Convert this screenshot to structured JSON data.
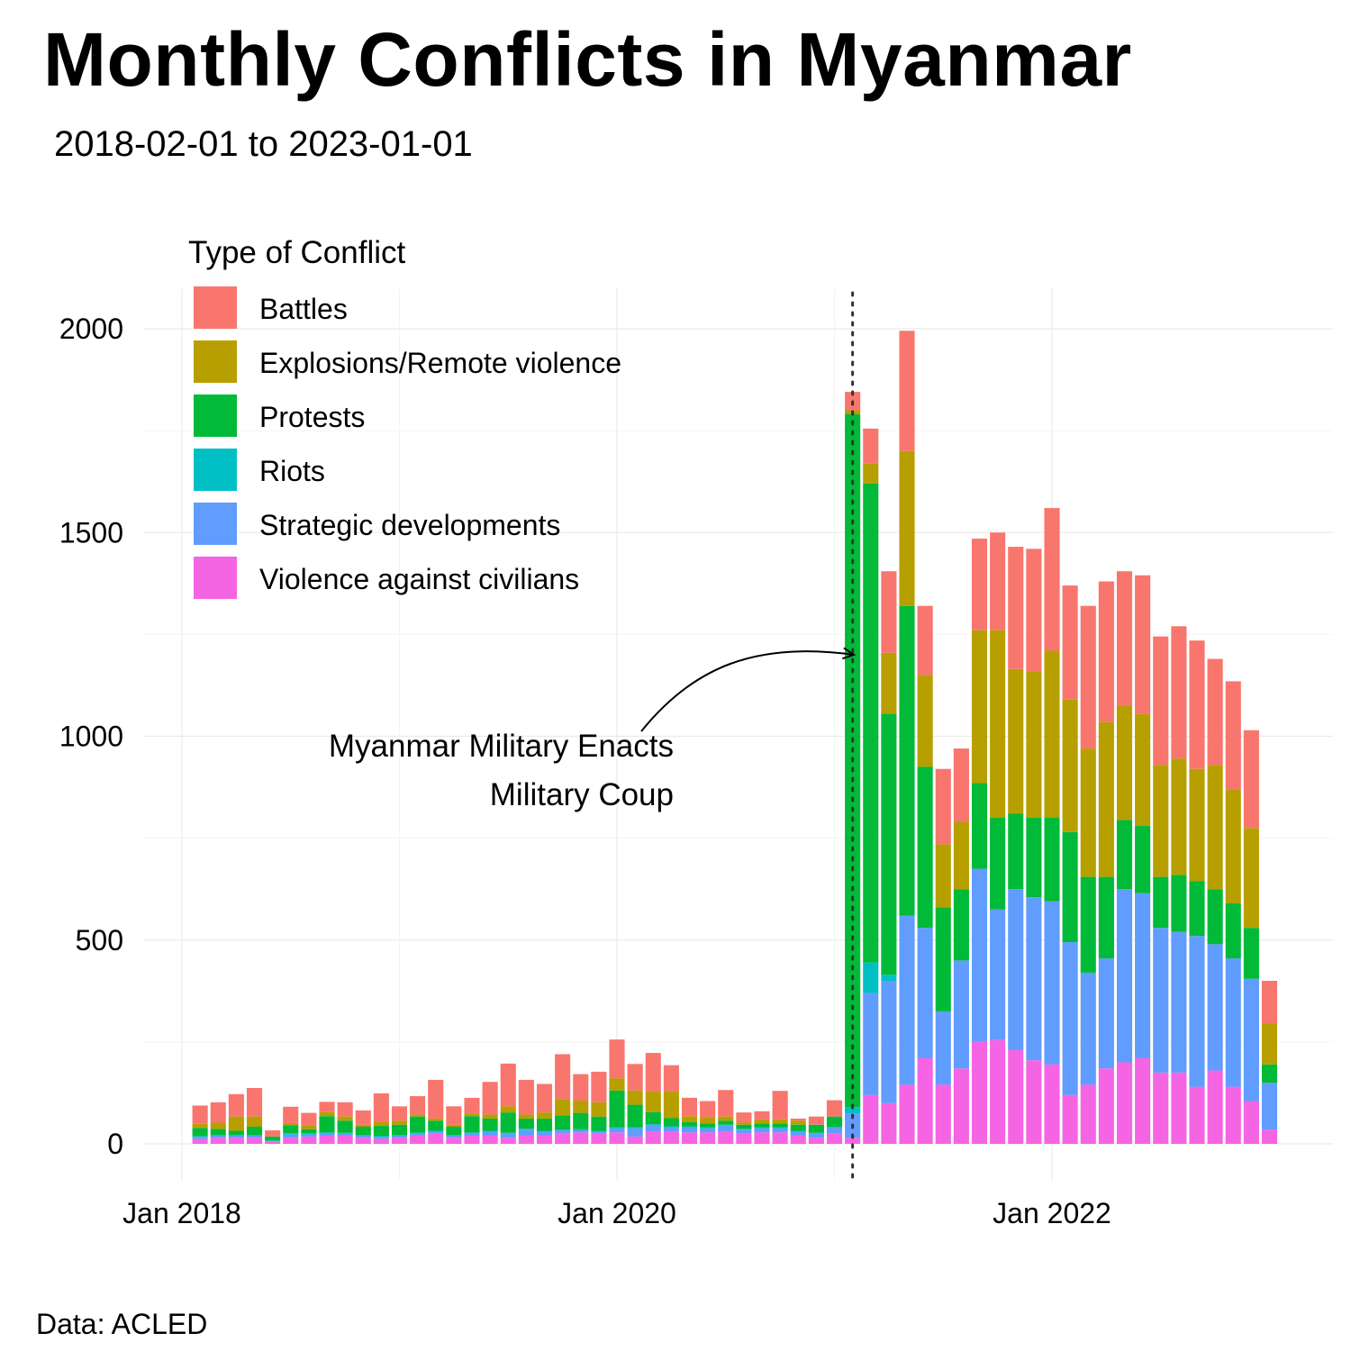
{
  "chart_data": {
    "type": "bar",
    "stacked": true,
    "title": "Monthly Conflicts in Myanmar",
    "subtitle": "2018-02-01 to 2023-01-01",
    "caption": "Data: ACLED",
    "legend_title": "Type of Conflict",
    "legend_position": "top-left",
    "grid": true,
    "ylim": [
      0,
      2100
    ],
    "y_ticks": [
      0,
      500,
      1000,
      1500,
      2000
    ],
    "x_ticks": [
      {
        "label": "Jan 2018",
        "date": "2018-01"
      },
      {
        "label": "Jan 2020",
        "date": "2020-01"
      },
      {
        "label": "Jan 2022",
        "date": "2022-01"
      }
    ],
    "annotation": {
      "lines": [
        "Myanmar Military Enacts",
        "Military Coup"
      ],
      "date": "2021-02"
    },
    "categories": [
      "2018-02",
      "2018-03",
      "2018-04",
      "2018-05",
      "2018-06",
      "2018-07",
      "2018-08",
      "2018-09",
      "2018-10",
      "2018-11",
      "2018-12",
      "2019-01",
      "2019-02",
      "2019-03",
      "2019-04",
      "2019-05",
      "2019-06",
      "2019-07",
      "2019-08",
      "2019-09",
      "2019-10",
      "2019-11",
      "2019-12",
      "2020-01",
      "2020-02",
      "2020-03",
      "2020-04",
      "2020-05",
      "2020-06",
      "2020-07",
      "2020-08",
      "2020-09",
      "2020-10",
      "2020-11",
      "2020-12",
      "2021-01",
      "2021-02",
      "2021-03",
      "2021-04",
      "2021-05",
      "2021-06",
      "2021-07",
      "2021-08",
      "2021-09",
      "2021-10",
      "2021-11",
      "2021-12",
      "2022-01",
      "2022-02",
      "2022-03",
      "2022-04",
      "2022-05",
      "2022-06",
      "2022-07",
      "2022-08",
      "2022-09",
      "2022-10",
      "2022-11",
      "2022-12",
      "2023-01"
    ],
    "series": [
      {
        "name": "Violence against civilians",
        "color": "#F564E3",
        "values": [
          12,
          15,
          15,
          15,
          5,
          15,
          18,
          20,
          20,
          15,
          12,
          15,
          20,
          25,
          15,
          20,
          20,
          15,
          20,
          20,
          25,
          28,
          25,
          28,
          18,
          30,
          30,
          28,
          28,
          30,
          25,
          28,
          28,
          20,
          15,
          25,
          15,
          120,
          100,
          145,
          210,
          145,
          185,
          250,
          255,
          230,
          205,
          195,
          120,
          145,
          185,
          200,
          210,
          175,
          175,
          140,
          180,
          140,
          105,
          35
        ]
      },
      {
        "name": "Strategic developments",
        "color": "#619CFF",
        "values": [
          5,
          5,
          5,
          5,
          2,
          8,
          5,
          5,
          5,
          5,
          5,
          5,
          5,
          5,
          5,
          5,
          10,
          10,
          15,
          10,
          8,
          5,
          5,
          10,
          20,
          15,
          10,
          12,
          10,
          15,
          10,
          10,
          10,
          10,
          10,
          15,
          60,
          250,
          300,
          415,
          320,
          180,
          265,
          425,
          320,
          395,
          400,
          400,
          375,
          275,
          270,
          425,
          405,
          355,
          345,
          370,
          310,
          315,
          300,
          115
        ]
      },
      {
        "name": "Riots",
        "color": "#00BFC4",
        "values": [
          2,
          2,
          2,
          2,
          1,
          3,
          3,
          3,
          2,
          2,
          2,
          2,
          2,
          2,
          2,
          3,
          2,
          2,
          2,
          2,
          2,
          3,
          2,
          3,
          3,
          3,
          3,
          3,
          2,
          2,
          2,
          2,
          2,
          2,
          2,
          2,
          15,
          75,
          15,
          0,
          0,
          0,
          0,
          0,
          0,
          0,
          0,
          0,
          0,
          0,
          0,
          0,
          0,
          0,
          0,
          0,
          0,
          0,
          0,
          0
        ]
      },
      {
        "name": "Protests",
        "color": "#00BA38",
        "values": [
          20,
          15,
          10,
          20,
          10,
          20,
          10,
          40,
          30,
          20,
          25,
          25,
          40,
          25,
          20,
          40,
          30,
          50,
          25,
          30,
          35,
          40,
          35,
          90,
          55,
          30,
          20,
          10,
          10,
          10,
          10,
          10,
          10,
          15,
          20,
          25,
          1700,
          1175,
          640,
          760,
          395,
          255,
          175,
          210,
          225,
          185,
          195,
          205,
          270,
          235,
          200,
          170,
          165,
          125,
          140,
          135,
          135,
          135,
          125,
          45
        ]
      },
      {
        "name": "Explosions/Remote violence",
        "color": "#B79F00",
        "values": [
          10,
          15,
          35,
          25,
          0,
          5,
          10,
          10,
          10,
          5,
          10,
          10,
          5,
          5,
          5,
          5,
          10,
          15,
          10,
          15,
          40,
          30,
          35,
          30,
          35,
          50,
          65,
          15,
          15,
          10,
          5,
          10,
          10,
          10,
          0,
          0,
          10,
          50,
          150,
          380,
          225,
          155,
          165,
          375,
          460,
          355,
          360,
          410,
          325,
          315,
          380,
          280,
          275,
          275,
          285,
          275,
          305,
          280,
          245,
          100
        ]
      },
      {
        "name": "Battles",
        "color": "#F8766D",
        "values": [
          45,
          50,
          55,
          70,
          15,
          40,
          30,
          25,
          35,
          35,
          70,
          35,
          45,
          95,
          45,
          40,
          80,
          105,
          85,
          70,
          110,
          65,
          75,
          95,
          65,
          95,
          65,
          45,
          40,
          65,
          25,
          20,
          70,
          5,
          20,
          40,
          45,
          85,
          200,
          295,
          170,
          185,
          180,
          225,
          240,
          300,
          300,
          350,
          280,
          350,
          345,
          330,
          340,
          315,
          325,
          315,
          260,
          265,
          240,
          105
        ]
      }
    ]
  }
}
